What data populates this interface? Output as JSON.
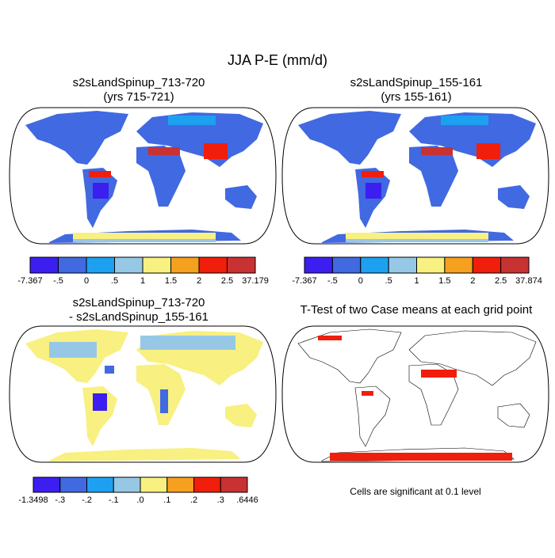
{
  "title": "JJA P-E (mm/d)",
  "panels": [
    {
      "title": [
        "s2sLandSpinup_713-720",
        "(yrs 715-721)"
      ],
      "colorbar": {
        "labels": [
          "-7.367",
          "-.5",
          "0",
          ".5",
          "1",
          "1.5",
          "2",
          "2.5",
          "37.179"
        ],
        "colors": [
          "#3c1ef0",
          "#4169e1",
          "#1ea0f0",
          "#96c8e6",
          "#f8f080",
          "#f5a01e",
          "#f01e0a",
          "#c83232"
        ]
      }
    },
    {
      "title": [
        "s2sLandSpinup_155-161",
        "(yrs 155-161)"
      ],
      "colorbar": {
        "labels": [
          "-7.367",
          "-.5",
          "0",
          ".5",
          "1",
          "1.5",
          "2",
          "2.5",
          "37.874"
        ],
        "colors": [
          "#3c1ef0",
          "#4169e1",
          "#1ea0f0",
          "#96c8e6",
          "#f8f080",
          "#f5a01e",
          "#f01e0a",
          "#c83232"
        ]
      }
    },
    {
      "title": [
        "s2sLandSpinup_713-720",
        "- s2sLandSpinup_155-161"
      ],
      "colorbar": {
        "labels": [
          "-1.3498",
          "-.3",
          "-.2",
          "-.1",
          ".0",
          ".1",
          ".2",
          ".3",
          ".6446"
        ],
        "colors": [
          "#3c1ef0",
          "#4169e1",
          "#1ea0f0",
          "#96c8e6",
          "#f8f080",
          "#f5a01e",
          "#f01e0a",
          "#c83232"
        ]
      }
    },
    {
      "title": [
        "T-Test of two Case means at each grid point"
      ],
      "footnote": "Cells are significant at 0.1 level"
    }
  ]
}
